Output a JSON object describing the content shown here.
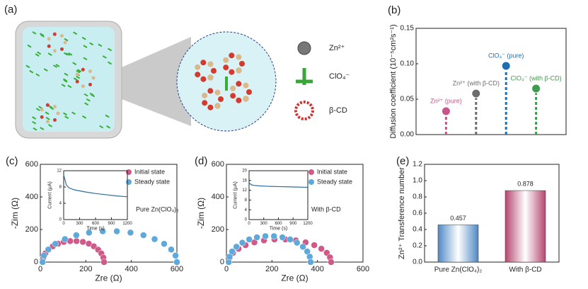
{
  "figure_a": {
    "panel_label": "(a)",
    "legend": [
      "Zn²⁺",
      "ClO₄⁻",
      "β-CD"
    ]
  },
  "chart_data": [
    {
      "type": "lollipop",
      "panel_label": "(b)",
      "ylabel": "Diffusion coefficient (10⁻⁵cm²s⁻¹)",
      "categories": [
        "Zn²⁺ (pure)",
        "Zn²⁺ (with β-CD)",
        "ClO₄⁻ (pure)",
        "ClO₄⁻ (with β-CD)"
      ],
      "values": [
        0.033,
        0.058,
        0.097,
        0.065
      ],
      "colors": [
        "#c9548a",
        "#6b6b6b",
        "#1f6fae",
        "#3f9b4f"
      ],
      "ylim": [
        0,
        0.15
      ],
      "yticks": [
        {
          "value": 0,
          "label": "0.00"
        },
        {
          "value": 0.05,
          "label": "0.05"
        },
        {
          "value": 0.1,
          "label": "0.10"
        },
        {
          "value": 0.15,
          "label": "0.15"
        }
      ]
    },
    {
      "type": "scatter",
      "panel_label": "(c)",
      "xlabel": "Zre (Ω)",
      "ylabel": "-Zim (Ω)",
      "annotation": "Pure Zn(ClO₄)₂",
      "xlim": [
        0,
        600
      ],
      "ylim": [
        0,
        600
      ],
      "xticks": [
        0,
        200,
        400,
        600
      ],
      "yticks": [
        0,
        200,
        400,
        600
      ],
      "series": [
        {
          "name": "Initial state",
          "color": "#cf5a8a",
          "x": [
            10,
            13,
            22,
            36,
            55,
            78,
            103,
            131,
            159,
            187,
            213,
            235,
            254,
            268,
            277,
            280
          ],
          "values": [
            0,
            27,
            53,
            76,
            97,
            113,
            124,
            129,
            129,
            124,
            113,
            97,
            76,
            53,
            27,
            0
          ]
        },
        {
          "name": "Steady state",
          "color": "#5ea9db",
          "x": [
            10,
            16,
            35,
            66,
            108,
            158,
            214,
            274,
            336,
            396,
            453,
            502,
            544,
            575,
            594,
            600
          ],
          "values": [
            0,
            40,
            77,
            112,
            141,
            165,
            181,
            189,
            189,
            181,
            165,
            141,
            112,
            77,
            40,
            0
          ]
        }
      ],
      "inset": {
        "type": "line",
        "xlabel": "Time (s)",
        "ylabel": "Current (μA)",
        "color": "#2a6f9e",
        "xlim": [
          0,
          1200
        ],
        "ylim": [
          0,
          12
        ],
        "xticks": [
          0,
          300,
          600,
          900,
          1200
        ],
        "yticks": [
          0,
          4,
          8,
          12
        ],
        "x": [
          0,
          50,
          100,
          200,
          400,
          600,
          800,
          1000,
          1200
        ],
        "values": [
          11,
          8.5,
          7.8,
          7.3,
          6.8,
          6.4,
          6.1,
          5.8,
          5.6
        ]
      }
    },
    {
      "type": "scatter",
      "panel_label": "(d)",
      "xlabel": "Zre (Ω)",
      "ylabel": "-Zim (Ω)",
      "annotation": "With β-CD",
      "xlim": [
        0,
        600
      ],
      "ylim": [
        0,
        600
      ],
      "xticks": [
        0,
        200,
        400,
        600
      ],
      "yticks": [
        0,
        200,
        400,
        600
      ],
      "series": [
        {
          "name": "Initial state",
          "color": "#cf5a8a",
          "x": [
            10,
            15,
            29,
            53,
            84,
            123,
            165,
            211,
            259,
            305,
            348,
            386,
            417,
            441,
            455,
            460
          ],
          "values": [
            0,
            29,
            57,
            82,
            104,
            121,
            133,
            139,
            139,
            133,
            121,
            104,
            82,
            57,
            29,
            0
          ]
        },
        {
          "name": "Steady state",
          "color": "#5ea9db",
          "x": [
            10,
            14,
            25,
            44,
            70,
            100,
            134,
            171,
            209,
            246,
            280,
            310,
            336,
            355,
            366,
            370
          ],
          "values": [
            0,
            33,
            65,
            94,
            119,
            139,
            152,
            159,
            159,
            152,
            139,
            119,
            94,
            65,
            33,
            0
          ]
        }
      ],
      "inset": {
        "type": "line",
        "xlabel": "Time (s)",
        "ylabel": "Current (μA)",
        "color": "#2a6f9e",
        "xlim": [
          0,
          1200
        ],
        "ylim": [
          0,
          20
        ],
        "xticks": [
          0,
          300,
          600,
          900,
          1200
        ],
        "yticks": [
          0,
          4,
          8,
          12,
          16,
          20
        ],
        "x": [
          0,
          50,
          100,
          200,
          400,
          600,
          800,
          1000,
          1200
        ],
        "values": [
          15,
          14.2,
          14,
          13.8,
          13.6,
          13.5,
          13.4,
          13.3,
          13.2
        ]
      }
    },
    {
      "type": "bar",
      "panel_label": "(e)",
      "ylabel": "Zn²⁺ Transference number",
      "categories": [
        "Pure Zn(ClO₄)₂",
        "With β-CD"
      ],
      "values": [
        0.457,
        0.878
      ],
      "colors": [
        "#4f88c4",
        "#b6466f"
      ],
      "ylim": [
        0,
        1.2
      ],
      "yticks": [
        {
          "value": 0,
          "label": "0.0"
        },
        {
          "value": 0.2,
          "label": "0.2"
        },
        {
          "value": 0.4,
          "label": "0.4"
        },
        {
          "value": 0.6,
          "label": "0.6"
        },
        {
          "value": 0.8,
          "label": "0.8"
        },
        {
          "value": 1,
          "label": "1.0"
        },
        {
          "value": 1.2,
          "label": "1.2"
        }
      ]
    }
  ]
}
